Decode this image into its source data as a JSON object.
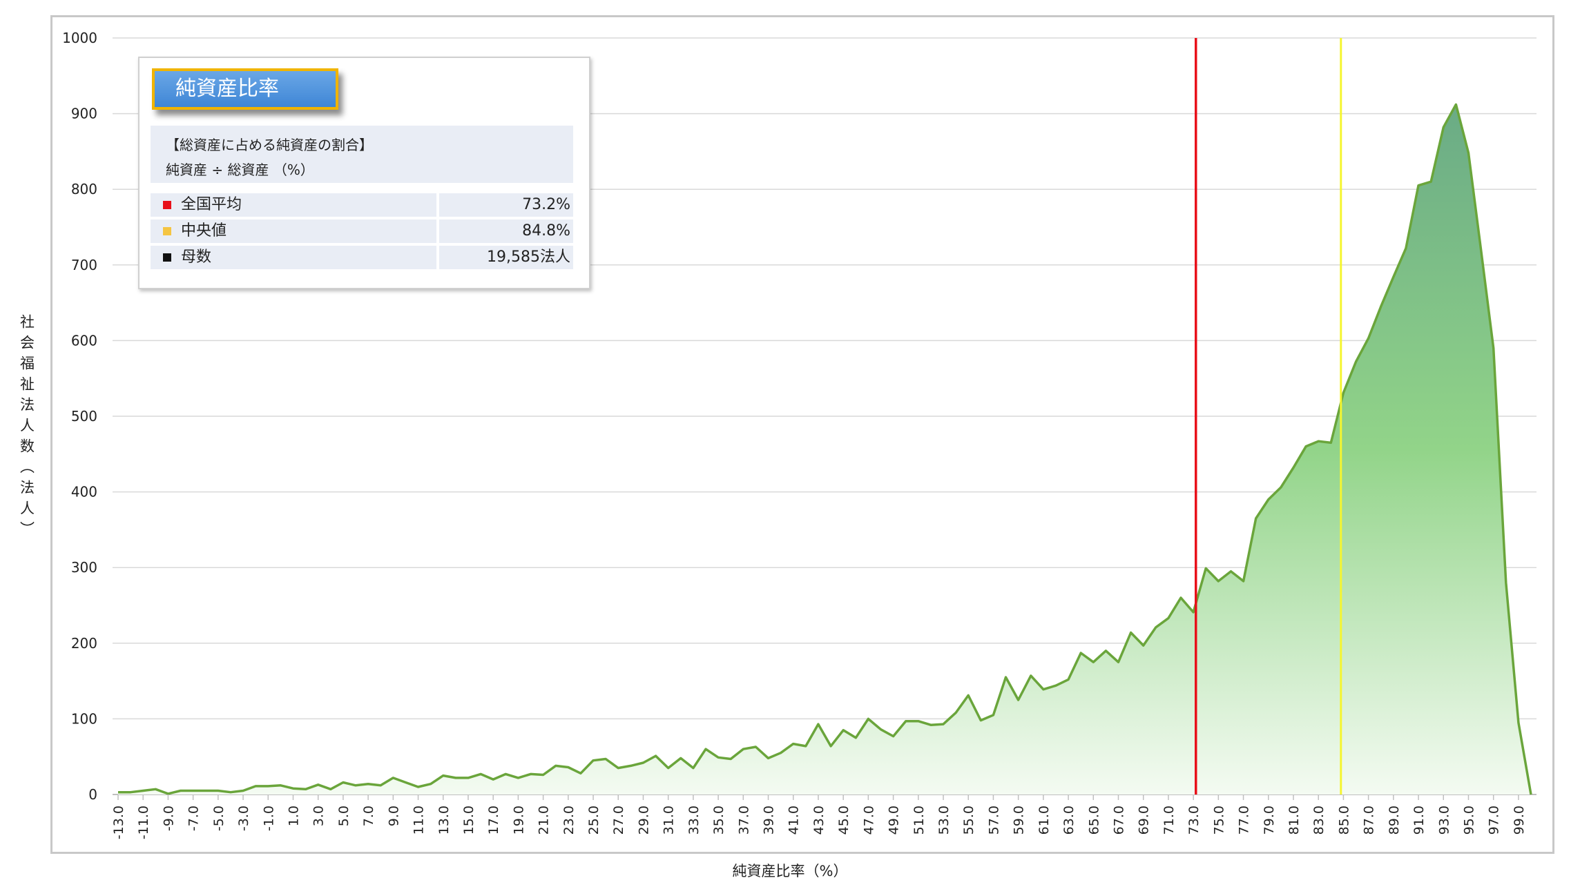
{
  "chart_data": {
    "type": "area",
    "ylabel": "社会福祉法人数（法人）",
    "xlabel": "純資産比率（%）",
    "ylim": [
      0,
      1000
    ],
    "yticks": [
      0,
      100,
      200,
      300,
      400,
      500,
      600,
      700,
      800,
      900,
      1000
    ],
    "xtick_labels": [
      "-13.0",
      "-11.0",
      "-9.0",
      "-7.0",
      "-5.0",
      "-3.0",
      "-1.0",
      "1.0",
      "3.0",
      "5.0",
      "7.0",
      "9.0",
      "11.0",
      "13.0",
      "15.0",
      "17.0",
      "19.0",
      "21.0",
      "23.0",
      "25.0",
      "27.0",
      "29.0",
      "31.0",
      "33.0",
      "35.0",
      "37.0",
      "39.0",
      "41.0",
      "43.0",
      "45.0",
      "47.0",
      "49.0",
      "51.0",
      "53.0",
      "55.0",
      "57.0",
      "59.0",
      "61.0",
      "63.0",
      "65.0",
      "67.0",
      "69.0",
      "71.0",
      "73.0",
      "75.0",
      "77.0",
      "79.0",
      "81.0",
      "83.0",
      "85.0",
      "87.0",
      "89.0",
      "91.0",
      "93.0",
      "95.0",
      "97.0",
      "99.0"
    ],
    "x": [
      -13,
      -12,
      -11,
      -10,
      -9,
      -8,
      -7,
      -6,
      -5,
      -4,
      -3,
      -2,
      -1,
      0,
      1,
      2,
      3,
      4,
      5,
      6,
      7,
      8,
      9,
      10,
      11,
      12,
      13,
      14,
      15,
      16,
      17,
      18,
      19,
      20,
      21,
      22,
      23,
      24,
      25,
      26,
      27,
      28,
      29,
      30,
      31,
      32,
      33,
      34,
      35,
      36,
      37,
      38,
      39,
      40,
      41,
      42,
      43,
      44,
      45,
      46,
      47,
      48,
      49,
      50,
      51,
      52,
      53,
      54,
      55,
      56,
      57,
      58,
      59,
      60,
      61,
      62,
      63,
      64,
      65,
      66,
      67,
      68,
      69,
      70,
      71,
      72,
      73,
      74,
      75,
      76,
      77,
      78,
      79,
      80,
      81,
      82,
      83,
      84,
      85,
      86,
      87,
      88,
      89,
      90,
      91,
      92,
      93,
      94,
      95,
      96,
      97,
      98,
      99,
      100
    ],
    "values": [
      3,
      3,
      5,
      7,
      1,
      5,
      5,
      5,
      5,
      3,
      5,
      11,
      11,
      12,
      8,
      7,
      13,
      7,
      16,
      12,
      14,
      12,
      22,
      16,
      10,
      14,
      25,
      22,
      22,
      27,
      20,
      27,
      22,
      27,
      26,
      38,
      36,
      28,
      45,
      47,
      35,
      38,
      42,
      51,
      35,
      48,
      35,
      60,
      49,
      47,
      60,
      63,
      48,
      55,
      67,
      64,
      93,
      64,
      85,
      75,
      100,
      86,
      77,
      97,
      97,
      92,
      93,
      108,
      131,
      98,
      105,
      155,
      125,
      157,
      139,
      144,
      152,
      187,
      175,
      190,
      175,
      214,
      197,
      221,
      233,
      260,
      241,
      299,
      282,
      295,
      282,
      365,
      390,
      406,
      432,
      460,
      467,
      465,
      531,
      572,
      603,
      645,
      684,
      722,
      805,
      810,
      882,
      912,
      848,
      720,
      590,
      280,
      95,
      0
    ],
    "legend_colors": {
      "area_fill_top": "#6aab85",
      "line": "#6aa53b",
      "mean": "#e8101a",
      "median": "#f5f530"
    },
    "mean_line_x": 73.2,
    "median_line_x": 84.8,
    "grid": "horizontal"
  },
  "info": {
    "title": "純資産比率",
    "desc_line1": "【総資産に占める純資産の割合】",
    "desc_line2": "純資産 ÷ 総資産 （%）",
    "rows": [
      {
        "label": "全国平均",
        "value": "73.2%",
        "color": "#e8101a"
      },
      {
        "label": "中央値",
        "value": "84.8%",
        "color": "#f5c542"
      },
      {
        "label": "母数",
        "value": "19,585法人",
        "color": "#111111"
      }
    ]
  }
}
